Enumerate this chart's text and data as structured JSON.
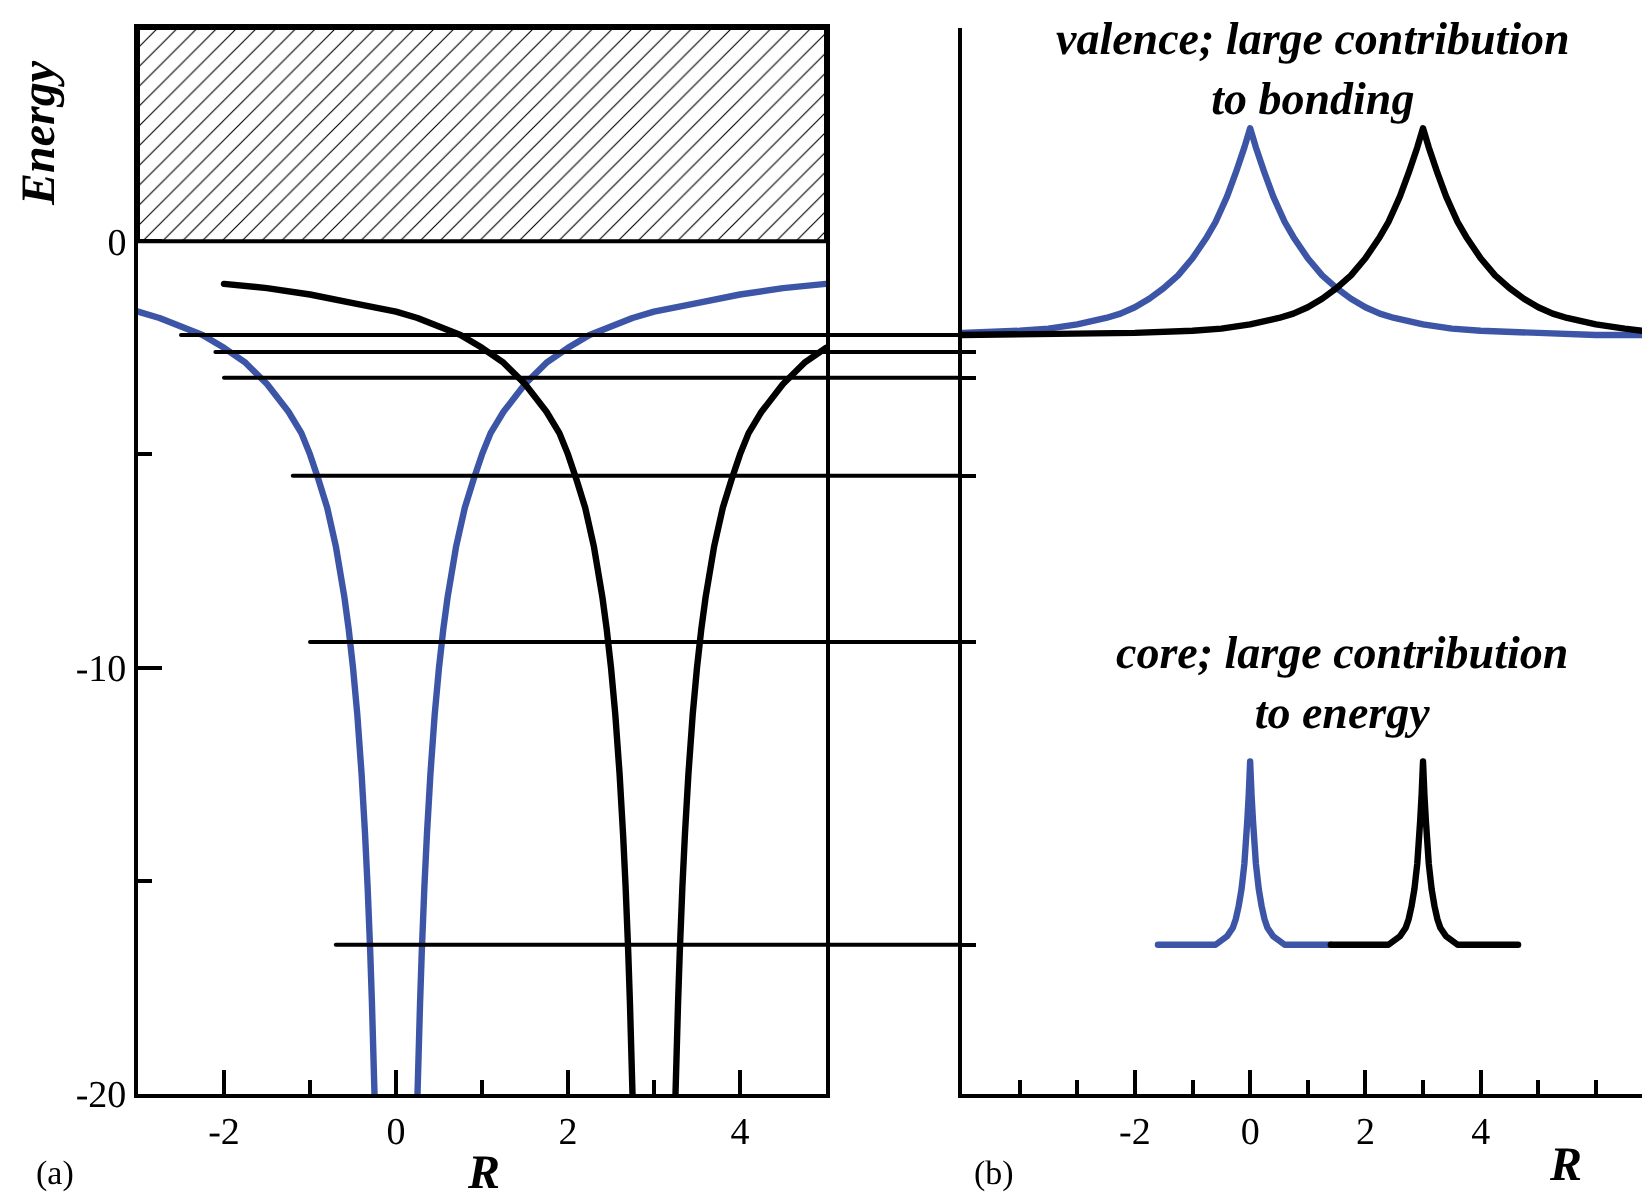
{
  "chart_data": [
    {
      "type": "line",
      "xlabel": "R",
      "ylabel": "Energy",
      "xlim": [
        -3,
        5
      ],
      "ylim": [
        -20,
        5
      ],
      "xticks": [
        -2,
        {
          "value": -1,
          "label": null
        },
        0,
        {
          "value": 1,
          "label": null
        },
        2,
        {
          "value": 3,
          "label": null
        },
        4
      ],
      "yticks": [
        -20,
        {
          "value": -15,
          "label": null
        },
        -10,
        {
          "value": -5,
          "label": null
        },
        0
      ],
      "bands": [
        {
          "axis": "y",
          "from": 0,
          "to": 5,
          "color": "#000000"
        }
      ],
      "annotations": [
        "(a)"
      ],
      "series": [
        {
          "color": "#3d55a6",
          "x": [
            -3,
            -2.75,
            -2.5,
            -2.25,
            -2,
            -1.75,
            -1.5,
            -1.25,
            -1.1,
            -1,
            -0.9,
            -0.8,
            -0.7,
            -0.6,
            -0.55,
            -0.5,
            -0.45,
            -0.4,
            -0.36,
            -0.33,
            -0.3,
            -0.28,
            -0.25,
            0,
            0.25,
            0.28,
            0.3,
            0.33,
            0.36,
            0.4,
            0.45,
            0.5,
            0.55,
            0.6,
            0.7,
            0.8,
            0.9,
            1,
            1.1,
            1.25,
            1.5,
            1.75,
            2,
            2.25,
            2.5,
            2.75,
            3,
            3.5,
            4,
            4.5,
            5
          ],
          "values": [
            -1.65,
            -1.8,
            -2,
            -2.2,
            -2.5,
            -2.85,
            -3.35,
            -4,
            -4.5,
            -5,
            -5.6,
            -6.25,
            -7.15,
            -8.35,
            -9.1,
            -10,
            -11.1,
            -12.5,
            -13.9,
            -15.15,
            -16.65,
            -17.85,
            -20,
            null,
            -20,
            -17.85,
            -16.65,
            -15.15,
            -13.9,
            -12.5,
            -11.1,
            -10,
            -9.1,
            -8.35,
            -7.15,
            -6.25,
            -5.6,
            -5,
            -4.5,
            -4,
            -3.35,
            -2.85,
            -2.5,
            -2.2,
            -2,
            -1.8,
            -1.65,
            -1.45,
            -1.25,
            -1.1,
            -1
          ]
        },
        {
          "color": "#000000",
          "x": [
            -2,
            -1.5,
            -1,
            -0.5,
            0,
            0.25,
            0.5,
            0.75,
            1,
            1.25,
            1.5,
            1.75,
            1.9,
            2,
            2.1,
            2.2,
            2.3,
            2.4,
            2.45,
            2.5,
            2.55,
            2.6,
            2.64,
            2.67,
            2.7,
            2.72,
            2.75,
            3,
            3.25,
            3.28,
            3.3,
            3.33,
            3.36,
            3.4,
            3.45,
            3.5,
            3.55,
            3.6,
            3.7,
            3.8,
            3.9,
            4,
            4.1,
            4.25,
            4.5,
            4.75,
            5
          ],
          "values": [
            -1,
            -1.1,
            -1.25,
            -1.45,
            -1.65,
            -1.8,
            -2,
            -2.2,
            -2.5,
            -2.85,
            -3.35,
            -4,
            -4.5,
            -5,
            -5.6,
            -6.25,
            -7.15,
            -8.35,
            -9.1,
            -10,
            -11.1,
            -12.5,
            -13.9,
            -15.15,
            -16.65,
            -17.85,
            -20,
            null,
            -20,
            -17.85,
            -16.65,
            -15.15,
            -13.9,
            -12.5,
            -11.1,
            -10,
            -9.1,
            -8.35,
            -7.15,
            -6.25,
            -5.6,
            -5,
            -4.5,
            -4,
            -3.35,
            -2.85,
            -2.5
          ]
        },
        {
          "color": "#000000",
          "x": [
            -2.5,
            5
          ],
          "values": [
            -2.2,
            -2.2
          ]
        },
        {
          "color": "#000000",
          "x": [
            -2.1,
            5
          ],
          "values": [
            -2.6,
            -2.6
          ]
        },
        {
          "color": "#000000",
          "x": [
            -2,
            5
          ],
          "values": [
            -3.2,
            -3.2
          ]
        },
        {
          "color": "#000000",
          "x": [
            -1.2,
            5
          ],
          "values": [
            -5.5,
            -5.5
          ]
        },
        {
          "color": "#000000",
          "x": [
            -1,
            5
          ],
          "values": [
            -9.4,
            -9.4
          ]
        },
        {
          "color": "#000000",
          "x": [
            -0.7,
            5
          ],
          "values": [
            -16.5,
            -16.5
          ]
        }
      ]
    },
    {
      "type": "line",
      "xlabel": "R",
      "xlim": [
        -5,
        6.8
      ],
      "ylim": [
        -20,
        5
      ],
      "tick_labels": "x",
      "xticks": [
        {
          "value": -4,
          "label": null
        },
        {
          "value": -3,
          "label": null
        },
        -2,
        {
          "value": -1,
          "label": null
        },
        0,
        {
          "value": 1,
          "label": null
        },
        2,
        {
          "value": 3,
          "label": null
        },
        4,
        {
          "value": 5,
          "label": null
        },
        {
          "value": 6,
          "label": null
        }
      ],
      "yticks": [
        {
          "value": -16.5,
          "label": null
        },
        {
          "value": -9.4,
          "label": null
        },
        {
          "value": -5.5,
          "label": null
        },
        {
          "value": -3.2,
          "label": null
        },
        {
          "value": -2.6,
          "label": null
        },
        {
          "value": -2.2,
          "label": null
        }
      ],
      "annotations": [
        "(b)",
        "valence; large contribution\nto bonding",
        "core; large contribution\nto energy"
      ],
      "series": [
        {
          "color": "#3d55a6",
          "x": [
            -5,
            -4,
            -3.5,
            -3,
            -2.5,
            -2.25,
            -2,
            -1.75,
            -1.5,
            -1.25,
            -1,
            -0.9,
            -0.75,
            -0.6,
            -0.5,
            -0.4,
            -0.25,
            -0.1,
            0,
            0.1,
            0.25,
            0.4,
            0.5,
            0.6,
            0.75,
            0.9,
            1,
            1.25,
            1.5,
            1.75,
            2,
            2.25,
            2.5,
            3,
            3.5,
            4,
            5,
            6,
            6.8
          ],
          "values": [
            -2.15,
            -2.1,
            -2.05,
            -1.95,
            -1.8,
            -1.7,
            -1.55,
            -1.35,
            -1.1,
            -0.8,
            -0.4,
            -0.2,
            0.1,
            0.45,
            0.75,
            1.05,
            1.6,
            2.2,
            2.65,
            2.2,
            1.6,
            1.05,
            0.75,
            0.45,
            0.1,
            -0.2,
            -0.4,
            -0.8,
            -1.1,
            -1.35,
            -1.55,
            -1.7,
            -1.8,
            -1.95,
            -2.05,
            -2.1,
            -2.15,
            -2.2,
            -2.2
          ]
        },
        {
          "color": "#000000",
          "x": [
            -5,
            -2,
            -1,
            -0.5,
            0,
            0.5,
            0.75,
            1,
            1.25,
            1.5,
            1.75,
            2,
            2.1,
            2.25,
            2.4,
            2.5,
            2.6,
            2.75,
            2.9,
            3,
            3.1,
            3.25,
            3.4,
            3.5,
            3.6,
            3.75,
            3.9,
            4,
            4.25,
            4.5,
            4.75,
            5,
            5.25,
            5.5,
            6,
            6.5,
            6.8
          ],
          "values": [
            -2.2,
            -2.15,
            -2.1,
            -2.05,
            -1.95,
            -1.8,
            -1.7,
            -1.55,
            -1.35,
            -1.1,
            -0.8,
            -0.4,
            -0.2,
            0.1,
            0.45,
            0.75,
            1.05,
            1.6,
            2.2,
            2.65,
            2.2,
            1.6,
            1.05,
            0.75,
            0.45,
            0.1,
            -0.2,
            -0.4,
            -0.8,
            -1.1,
            -1.35,
            -1.55,
            -1.7,
            -1.8,
            -1.95,
            -2.05,
            -2.1
          ]
        },
        {
          "color": "#3d55a6",
          "x": [
            -1.6,
            -0.6,
            -0.5,
            -0.4,
            -0.3,
            -0.25,
            -0.2,
            -0.15,
            -0.125,
            -0.1,
            -0.075,
            -0.05,
            -0.025,
            0,
            0.025,
            0.05,
            0.075,
            0.1,
            0.125,
            0.15,
            0.2,
            0.25,
            0.3,
            0.4,
            0.5,
            0.6,
            1.4
          ],
          "values": [
            -16.5,
            -16.5,
            -16.4,
            -16.3,
            -16.1,
            -15.9,
            -15.6,
            -15.2,
            -14.9,
            -14.6,
            -14.1,
            -13.6,
            -13,
            -12.2,
            -13,
            -13.6,
            -14.1,
            -14.6,
            -14.9,
            -15.2,
            -15.6,
            -15.9,
            -16.1,
            -16.3,
            -16.4,
            -16.5,
            -16.5
          ]
        },
        {
          "color": "#000000",
          "x": [
            1.4,
            2.4,
            2.5,
            2.6,
            2.7,
            2.75,
            2.8,
            2.85,
            2.875,
            2.9,
            2.925,
            2.95,
            2.975,
            3,
            3.025,
            3.05,
            3.075,
            3.1,
            3.125,
            3.15,
            3.2,
            3.25,
            3.3,
            3.4,
            3.5,
            3.6,
            4.65
          ],
          "values": [
            -16.5,
            -16.5,
            -16.4,
            -16.3,
            -16.1,
            -15.9,
            -15.6,
            -15.2,
            -14.9,
            -14.6,
            -14.1,
            -13.6,
            -13,
            -12.2,
            -13,
            -13.6,
            -14.1,
            -14.6,
            -14.9,
            -15.2,
            -15.6,
            -15.9,
            -16.1,
            -16.3,
            -16.4,
            -16.5,
            -16.5
          ]
        }
      ]
    }
  ]
}
